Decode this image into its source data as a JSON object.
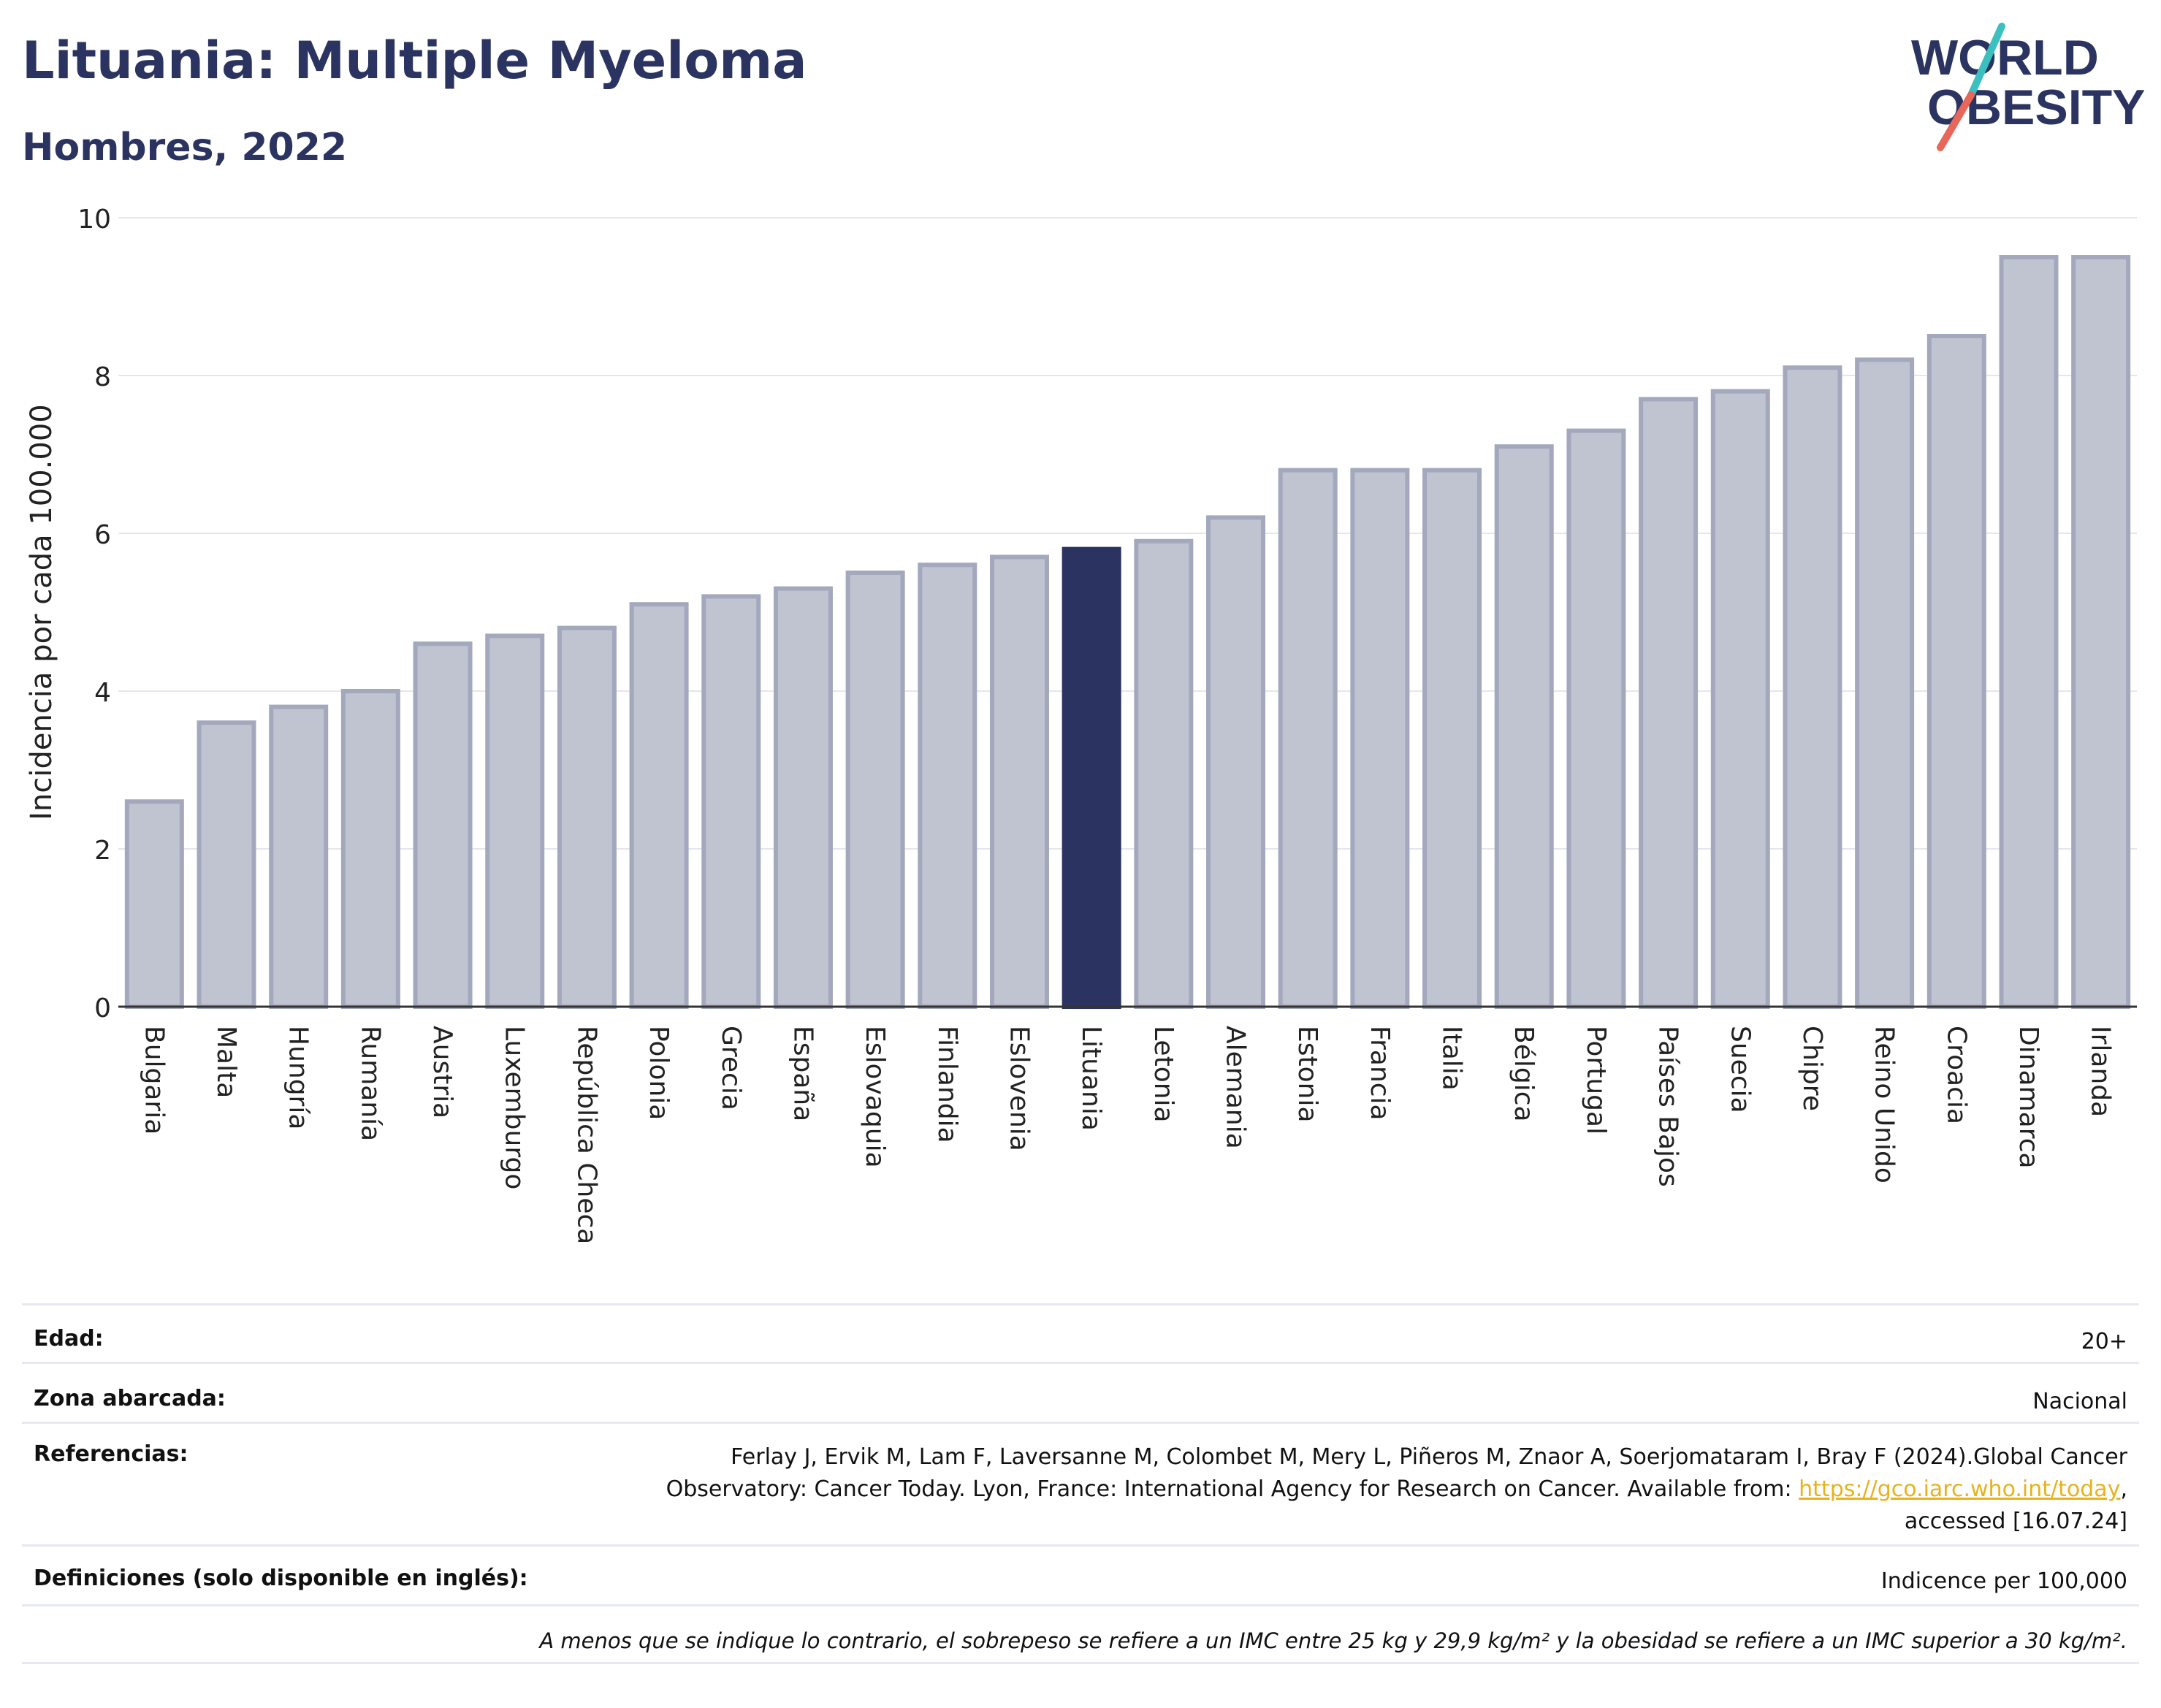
{
  "header": {
    "title": "Lituania: Multiple Myeloma",
    "subtitle": "Hombres, 2022"
  },
  "logo": {
    "line1": "WORLD",
    "line2": "OBESITY",
    "colors": {
      "text": "#2b3461",
      "slash_top": "#3bbfbf",
      "slash_bottom": "#e8665a"
    }
  },
  "chart_data": {
    "type": "bar",
    "title": "Lituania: Multiple Myeloma",
    "subtitle": "Hombres, 2022",
    "xlabel": "",
    "ylabel": "Incidencia por cada 100.000",
    "ylim": [
      0,
      10
    ],
    "yticks": [
      0,
      2,
      4,
      6,
      8,
      10
    ],
    "grid": true,
    "highlight": "Lituania",
    "colors": {
      "default": "#c0c3d0",
      "default_border": "#a3a8bd",
      "highlight": "#2b3461"
    },
    "categories": [
      "Bulgaria",
      "Malta",
      "Hungría",
      "Rumanía",
      "Austria",
      "Luxemburgo",
      "República Checa",
      "Polonia",
      "Grecia",
      "España",
      "Eslovaquia",
      "Finlandia",
      "Eslovenia",
      "Lituania",
      "Letonia",
      "Alemania",
      "Estonia",
      "Francia",
      "Italia",
      "Bélgica",
      "Portugal",
      "Países Bajos",
      "Suecia",
      "Chipre",
      "Reino Unido",
      "Croacia",
      "Dinamarca",
      "Irlanda"
    ],
    "values": [
      2.6,
      3.6,
      3.8,
      4.0,
      4.6,
      4.7,
      4.8,
      5.1,
      5.2,
      5.3,
      5.5,
      5.6,
      5.7,
      5.8,
      5.9,
      6.2,
      6.8,
      6.8,
      6.8,
      7.1,
      7.3,
      7.7,
      7.8,
      8.1,
      8.2,
      8.5,
      9.5,
      9.5
    ]
  },
  "info": {
    "edad_label": "Edad:",
    "edad_value": "20+",
    "zona_label": "Zona abarcada:",
    "zona_value": "Nacional",
    "ref_label": "Referencias:",
    "ref_text_1": "Ferlay J, Ervik M, Lam F, Laversanne M, Colombet M, Mery L, Piñeros M, Znaor A, Soerjomataram I, Bray F (2024).Global Cancer",
    "ref_text_2": "Observatory: Cancer Today. Lyon, France: International Agency for Research on Cancer. Available from: ",
    "ref_link": "https://gco.iarc.who.int/today",
    "ref_text_3": ",",
    "ref_text_4": "accessed [16.07.24]",
    "def_label": "Definiciones (solo disponible en inglés):",
    "def_value": "Indicence per 100,000",
    "note": "A menos que se indique lo contrario, el sobrepeso se refiere a un IMC entre 25 kg y 29,9 kg/m² y la obesidad se refiere a un IMC superior a 30 kg/m²."
  }
}
